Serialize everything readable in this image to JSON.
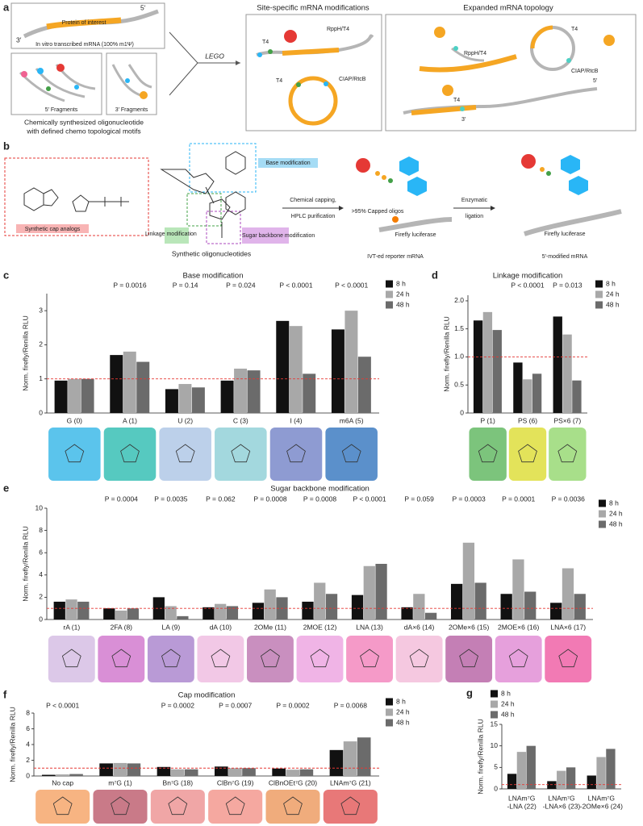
{
  "panel_a": {
    "label": "a",
    "five_prime": "5′",
    "three_prime": "3′",
    "protein": "Protein of interest",
    "ivt": "In vitro transcribed mRNA (100% m1Ψ)",
    "frag5": "5′ Fragments",
    "frag3": "3′ Fragments",
    "caption1": "Chemically synthesized oligonucleotide",
    "caption2": "with defined chemo topological motifs",
    "lego": "LEGO",
    "site_title": "Site-specific mRNA modifications",
    "topo_title": "Expanded mRNA topology",
    "site_labels": [
      "T4",
      "RppH/T4",
      "T4",
      "CIAP/RtcB"
    ],
    "topo_labels": [
      "RppH/T4",
      "T4",
      "CIAP/RtcB",
      "T4",
      "5′",
      "3′"
    ]
  },
  "panel_b": {
    "label": "b",
    "cap": "Synthetic cap analogs",
    "linkage": "Linkage modification",
    "sugar": "Sugar backbone modification",
    "base": "Base modification",
    "oligos": "Synthetic oligonucleotides",
    "step1a": "Chemical capping,",
    "step1b": "HPLC purification",
    "capped": ">95% Capped oligos",
    "reporter": "IVT-ed reporter mRNA",
    "firefly1": "Firefly luciferase",
    "step2a": "Enzymatic",
    "step2b": "ligation",
    "product": "5′-modified mRNA",
    "firefly2": "Firefly luciferase"
  },
  "chart_data": [
    {
      "type": "bar",
      "label": "c",
      "title": "Base modification",
      "y_label": "Norm. firefly/Renilla RLU",
      "categories": [
        "G (0)",
        "A (1)",
        "U (2)",
        "C (3)",
        "I (4)",
        "m6A (5)"
      ],
      "p_values": [
        null,
        "P = 0.0016",
        "P = 0.14",
        "P = 0.024",
        "P < 0.0001",
        "P < 0.0001"
      ],
      "series": [
        {
          "name": "8 h",
          "color": "#111111",
          "values": [
            0.95,
            1.7,
            0.7,
            0.95,
            2.7,
            2.45
          ]
        },
        {
          "name": "24 h",
          "color": "#a8a8a8",
          "values": [
            1.0,
            1.8,
            0.85,
            1.3,
            2.55,
            3.0
          ]
        },
        {
          "name": "48 h",
          "color": "#6b6b6b",
          "values": [
            1.0,
            1.5,
            0.75,
            1.25,
            1.15,
            1.65
          ]
        }
      ],
      "ylim": [
        0,
        3.5
      ],
      "yticks": [
        0,
        1,
        2,
        3
      ],
      "reference_line": 1
    },
    {
      "type": "bar",
      "label": "d",
      "title": "Linkage modification",
      "y_label": "Norm. firefly/Renilla RLU",
      "categories": [
        "P (1)",
        "PS (6)",
        "PS×6 (7)"
      ],
      "p_values": [
        null,
        "P < 0.0001",
        "P = 0.013"
      ],
      "series": [
        {
          "name": "8 h",
          "color": "#111111",
          "values": [
            1.65,
            0.9,
            1.72
          ]
        },
        {
          "name": "24 h",
          "color": "#a8a8a8",
          "values": [
            1.8,
            0.6,
            1.4
          ]
        },
        {
          "name": "48 h",
          "color": "#6b6b6b",
          "values": [
            1.48,
            0.7,
            0.58
          ]
        }
      ],
      "ylim": [
        0,
        2.1
      ],
      "yticks": [
        0,
        0.5,
        {
          "value": 1,
          "label": "1.0"
        },
        1.5,
        {
          "value": 2,
          "label": "2.0"
        }
      ],
      "reference_line": 1
    },
    {
      "type": "bar",
      "label": "e",
      "title": "Sugar backbone modification",
      "y_label": "Norm. firefly/Renilla RLU",
      "categories": [
        "rA (1)",
        "2FA (8)",
        "LA (9)",
        "dA (10)",
        "2OMe (11)",
        "2MOE (12)",
        "LNA (13)",
        "dA×6 (14)",
        "2OMe×6 (15)",
        "2MOE×6 (16)",
        "LNA×6 (17)"
      ],
      "p_values": [
        null,
        "P = 0.0004",
        "P = 0.0035",
        "P = 0.062",
        "P = 0.0008",
        "P = 0.0008",
        "P < 0.0001",
        "P = 0.059",
        "P = 0.0003",
        "P = 0.0001",
        "P = 0.0036"
      ],
      "series": [
        {
          "name": "8 h",
          "color": "#111111",
          "values": [
            1.6,
            1.0,
            2.0,
            1.1,
            1.5,
            1.6,
            2.2,
            1.1,
            3.2,
            2.3,
            1.5
          ]
        },
        {
          "name": "24 h",
          "color": "#a8a8a8",
          "values": [
            1.8,
            0.8,
            1.2,
            1.4,
            2.7,
            3.3,
            4.8,
            2.3,
            6.9,
            5.4,
            4.6
          ]
        },
        {
          "name": "48 h",
          "color": "#6b6b6b",
          "values": [
            1.6,
            1.0,
            0.3,
            1.2,
            2.0,
            2.3,
            5.0,
            0.6,
            3.3,
            2.5,
            2.3
          ]
        }
      ],
      "ylim": [
        0,
        10
      ],
      "yticks": [
        0,
        2,
        4,
        6,
        8,
        10
      ],
      "reference_line": 1
    },
    {
      "type": "bar",
      "label": "f",
      "title": "Cap modification",
      "y_label": "Norm. firefly/Renilla RLU",
      "categories": [
        "No cap",
        "m⁷G (1)",
        "Bn⁷G (18)",
        "ClBn⁷G (19)",
        "ClBnOEt⁷G (20)",
        "LNAm⁷G (21)"
      ],
      "p_values": [
        "P < 0.0001",
        null,
        "P = 0.0002",
        "P = 0.0007",
        "P = 0.0002",
        "P = 0.0068"
      ],
      "series": [
        {
          "name": "8 h",
          "color": "#111111",
          "values": [
            0.15,
            1.6,
            1.15,
            1.2,
            0.95,
            3.3
          ]
        },
        {
          "name": "24 h",
          "color": "#a8a8a8",
          "values": [
            0.2,
            1.65,
            0.85,
            1.0,
            0.8,
            4.4
          ]
        },
        {
          "name": "48 h",
          "color": "#6b6b6b",
          "values": [
            0.25,
            1.6,
            0.85,
            1.0,
            0.85,
            4.9
          ]
        }
      ],
      "ylim": [
        0,
        8
      ],
      "yticks": [
        0,
        2,
        4,
        6,
        8
      ],
      "reference_line": 1
    },
    {
      "type": "bar",
      "label": "g",
      "y_label": "Norm. firefly/Renilla RLU",
      "categories": [
        [
          "LNAm⁷G",
          "-LNA (22)"
        ],
        [
          "LNAm⁷G",
          "-LNA×6 (23)"
        ],
        [
          "LNAm⁷G",
          "-2OMe×6 (24)"
        ]
      ],
      "series": [
        {
          "name": "8 h",
          "color": "#111111",
          "values": [
            3.5,
            1.8,
            3.1
          ]
        },
        {
          "name": "24 h",
          "color": "#a8a8a8",
          "values": [
            8.6,
            4.2,
            7.4
          ]
        },
        {
          "name": "48 h",
          "color": "#6b6b6b",
          "values": [
            10.0,
            5.0,
            9.3
          ]
        }
      ],
      "ylim": [
        0,
        15
      ],
      "yticks": [
        0,
        5,
        10,
        15
      ],
      "reference_line": 1
    }
  ]
}
